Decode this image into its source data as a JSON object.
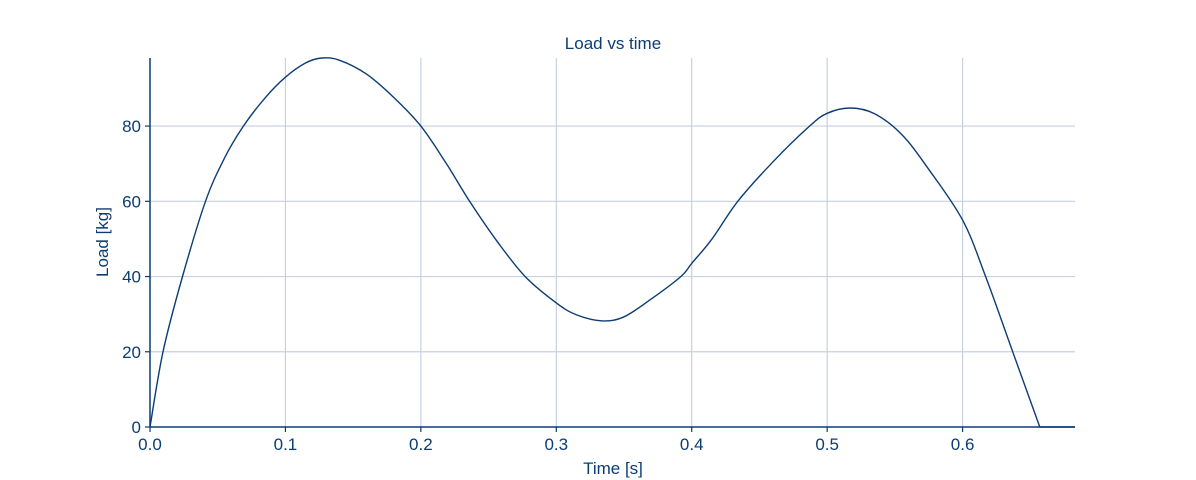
{
  "chart_data": {
    "type": "line",
    "title": "Load vs time",
    "xlabel": "Time [s]",
    "ylabel": "Load [kg]",
    "xlim": [
      0.0,
      0.683
    ],
    "ylim": [
      0,
      98.1
    ],
    "xticks": [
      0.0,
      0.1,
      0.2,
      0.3,
      0.4,
      0.5,
      0.6
    ],
    "xtick_labels": [
      "0.0",
      "0.1",
      "0.2",
      "0.3",
      "0.4",
      "0.5",
      "0.6"
    ],
    "yticks": [
      0,
      20,
      40,
      60,
      80
    ],
    "ytick_labels": [
      "0",
      "20",
      "40",
      "60",
      "80"
    ],
    "grid": true,
    "legend": null,
    "colors": {
      "line": "#0b3d73",
      "grid": "#c5d1e0",
      "text": "#0b3d73"
    },
    "series": [
      {
        "name": "Load",
        "x": [
          0.0,
          0.0096,
          0.024,
          0.041,
          0.055,
          0.069,
          0.085,
          0.1,
          0.115,
          0.127,
          0.14,
          0.16,
          0.18,
          0.2,
          0.218,
          0.236,
          0.256,
          0.277,
          0.3,
          0.315,
          0.334,
          0.35,
          0.37,
          0.392,
          0.4,
          0.415,
          0.434,
          0.46,
          0.487,
          0.5,
          0.517,
          0.535,
          0.555,
          0.575,
          0.6,
          0.617,
          0.637,
          0.657,
          0.683
        ],
        "y": [
          0,
          20,
          40,
          60,
          71.5,
          80,
          87.5,
          93,
          96.8,
          98.1,
          97.5,
          93.8,
          87.6,
          80,
          70.5,
          60,
          49.5,
          40,
          33,
          29.8,
          28.2,
          29.3,
          34,
          40,
          43.5,
          50,
          60,
          70.5,
          80,
          83.4,
          84.8,
          83.3,
          77.8,
          68.5,
          55,
          40,
          20,
          0,
          0
        ]
      }
    ]
  }
}
